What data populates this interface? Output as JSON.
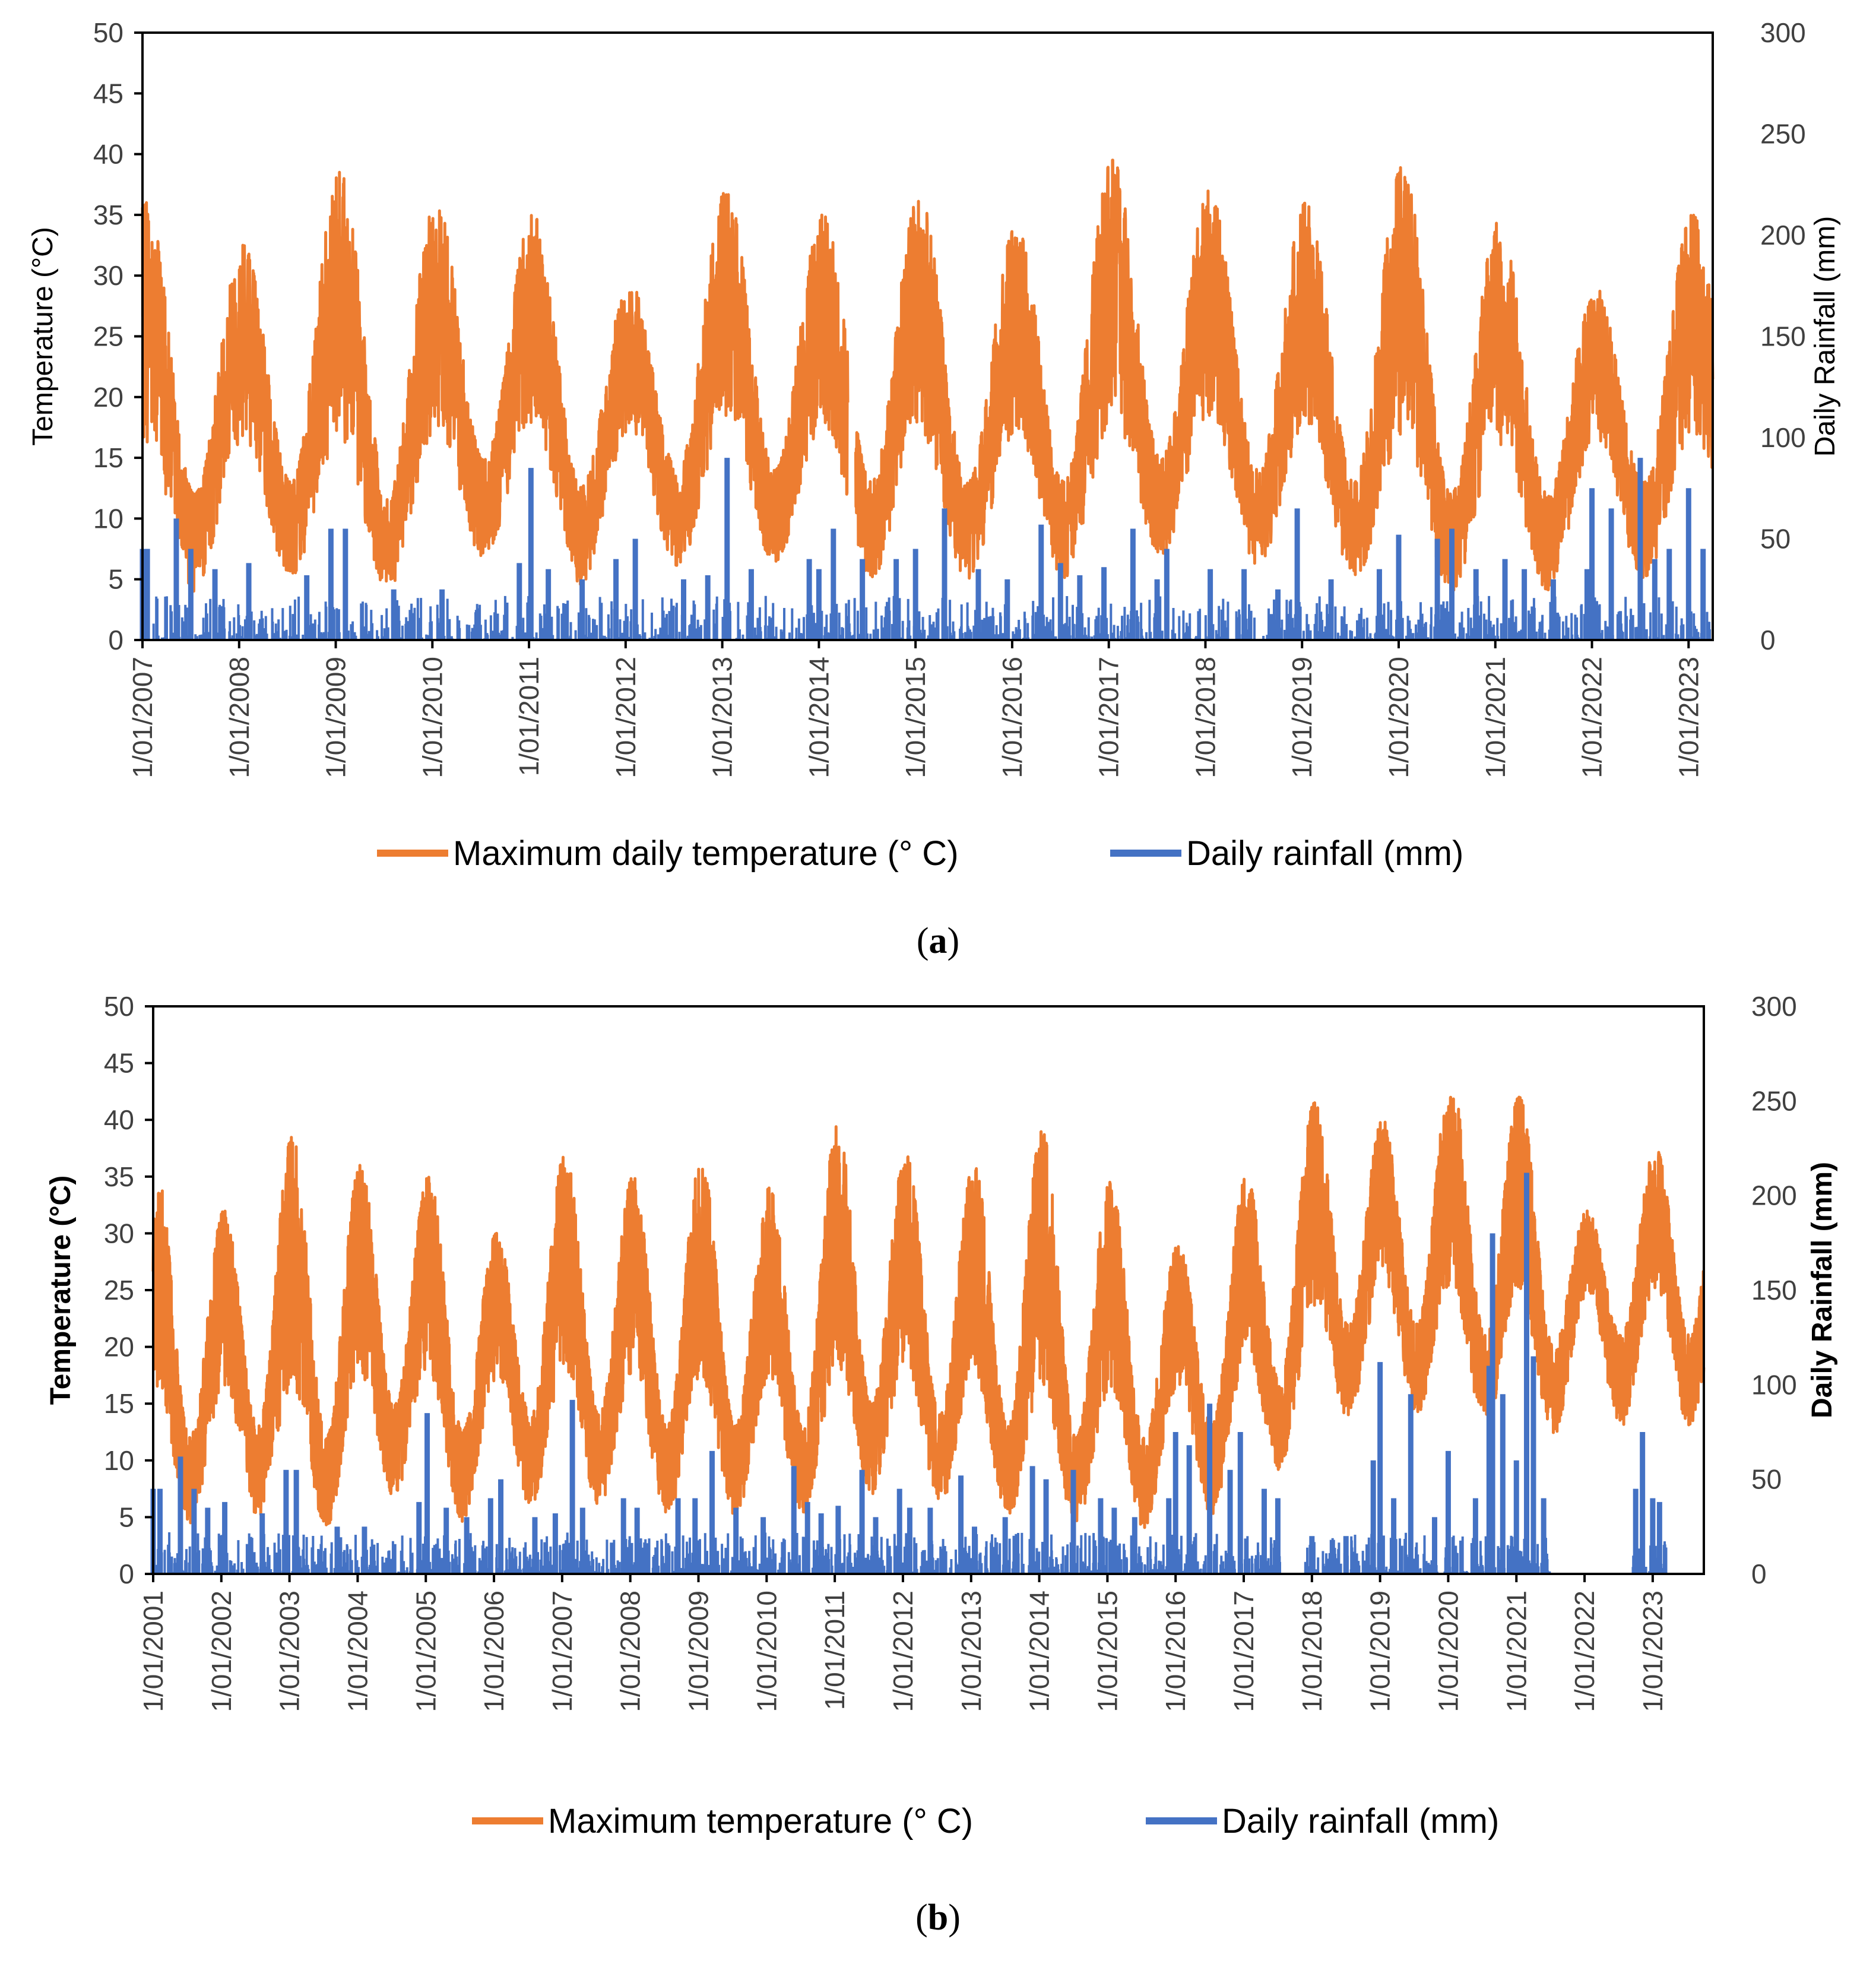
{
  "colors": {
    "temperature": "#ED7D31",
    "rainfall": "#4472C4",
    "axis": "#000000",
    "tick_text": "#404040"
  },
  "chart_data": [
    {
      "type": "line",
      "panel_label": "a",
      "caption": {
        "open": "(",
        "letter": "a",
        "close": ")"
      },
      "title": "",
      "ylabel_left": "Temperature (°C)",
      "ylabel_right": "Daily Rainfall (mm)",
      "ylim_left": [
        0,
        50
      ],
      "ylim_right": [
        0,
        300
      ],
      "yticks_left": [
        "0",
        "5",
        "10",
        "15",
        "20",
        "25",
        "30",
        "35",
        "40",
        "45",
        "50"
      ],
      "yticks_right": [
        "0",
        "50",
        "100",
        "150",
        "200",
        "250",
        "300"
      ],
      "x_start_year": 2007,
      "x_end_year": 2023.25,
      "x_tick_labels": [
        "1/01/2007",
        "1/01/2008",
        "1/01/2009",
        "1/01/2010",
        "1/01/2011",
        "1/01/2012",
        "1/01/2013",
        "1/01/2014",
        "1/01/2015",
        "1/01/2016",
        "1/01/2017",
        "1/01/2018",
        "1/01/2019",
        "1/01/2020",
        "1/01/2021",
        "1/01/2022",
        "1/01/2023"
      ],
      "grid": false,
      "legend": [
        "Maximum  daily temperature (° C)",
        "Daily rainfall (mm)"
      ],
      "series": [
        {
          "name": "Maximum  daily temperature (° C)",
          "axis": "left",
          "description": "daily maximum temperature, seasonal cycle; yearly extremes listed",
          "annual_peaks": [
            [
              2007.02,
              36
            ],
            [
              2008.05,
              32.5
            ],
            [
              2009.08,
              38.5
            ],
            [
              2010.0,
              36
            ],
            [
              2011.03,
              35
            ],
            [
              2012.05,
              29.5
            ],
            [
              2013.02,
              37
            ],
            [
              2014.05,
              35
            ],
            [
              2015.02,
              36.5
            ],
            [
              2016.05,
              34
            ],
            [
              2017.06,
              39.5
            ],
            [
              2018.04,
              37
            ],
            [
              2019.05,
              36
            ],
            [
              2020.03,
              39
            ],
            [
              2021.02,
              34.5
            ],
            [
              2022.05,
              29
            ],
            [
              2023.22,
              35
            ]
          ],
          "annual_troughs": [
            [
              2007.52,
              4
            ],
            [
              2008.55,
              5
            ],
            [
              2009.55,
              4
            ],
            [
              2010.6,
              7
            ],
            [
              2011.5,
              4.5
            ],
            [
              2012.5,
              6
            ],
            [
              2013.5,
              6
            ],
            [
              2014.55,
              5
            ],
            [
              2015.5,
              5
            ],
            [
              2016.55,
              5
            ],
            [
              2017.5,
              7
            ],
            [
              2018.55,
              6
            ],
            [
              2019.55,
              5
            ],
            [
              2020.55,
              4
            ],
            [
              2021.55,
              4
            ],
            [
              2022.5,
              5
            ]
          ],
          "gaps": [
            [
              2014.3,
              2014.38
            ]
          ]
        },
        {
          "name": "Daily rainfall (mm)",
          "axis": "right",
          "description": "daily rainfall spikes; notable events listed",
          "events": [
            [
              2007.0,
              45
            ],
            [
              2007.05,
              45
            ],
            [
              2007.35,
              60
            ],
            [
              2007.5,
              45
            ],
            [
              2007.75,
              35
            ],
            [
              2008.1,
              38
            ],
            [
              2008.7,
              32
            ],
            [
              2008.95,
              55
            ],
            [
              2009.1,
              55
            ],
            [
              2009.6,
              25
            ],
            [
              2010.1,
              25
            ],
            [
              2010.9,
              38
            ],
            [
              2011.02,
              85
            ],
            [
              2011.2,
              35
            ],
            [
              2011.55,
              30
            ],
            [
              2011.9,
              40
            ],
            [
              2012.1,
              50
            ],
            [
              2012.6,
              30
            ],
            [
              2012.85,
              32
            ],
            [
              2013.05,
              90
            ],
            [
              2013.3,
              35
            ],
            [
              2013.9,
              40
            ],
            [
              2014.0,
              35
            ],
            [
              2014.15,
              55
            ],
            [
              2014.45,
              40
            ],
            [
              2014.8,
              40
            ],
            [
              2015.0,
              45
            ],
            [
              2015.3,
              65
            ],
            [
              2015.65,
              35
            ],
            [
              2015.95,
              30
            ],
            [
              2016.3,
              57
            ],
            [
              2016.5,
              38
            ],
            [
              2016.7,
              32
            ],
            [
              2016.95,
              36
            ],
            [
              2017.25,
              55
            ],
            [
              2017.5,
              30
            ],
            [
              2017.6,
              45
            ],
            [
              2018.05,
              35
            ],
            [
              2018.4,
              35
            ],
            [
              2018.75,
              25
            ],
            [
              2018.95,
              65
            ],
            [
              2019.3,
              30
            ],
            [
              2019.8,
              35
            ],
            [
              2020.0,
              52
            ],
            [
              2020.4,
              50
            ],
            [
              2020.55,
              55
            ],
            [
              2020.8,
              35
            ],
            [
              2021.1,
              40
            ],
            [
              2021.3,
              35
            ],
            [
              2021.6,
              30
            ],
            [
              2021.95,
              35
            ],
            [
              2022.0,
              75
            ],
            [
              2022.2,
              65
            ],
            [
              2022.5,
              90
            ],
            [
              2022.65,
              40
            ],
            [
              2022.8,
              45
            ],
            [
              2023.0,
              75
            ],
            [
              2023.15,
              45
            ]
          ]
        }
      ]
    },
    {
      "type": "line",
      "panel_label": "b",
      "caption": {
        "open": "(",
        "letter": "b",
        "close": ")"
      },
      "title": "",
      "ylabel_left": "Temperature (°C)",
      "ylabel_right": "Daily Rainfall (mm)",
      "ylim_left": [
        0,
        50
      ],
      "ylim_right": [
        0,
        300
      ],
      "yticks_left": [
        "0",
        "5",
        "10",
        "15",
        "20",
        "25",
        "30",
        "35",
        "40",
        "45",
        "50"
      ],
      "yticks_right": [
        "0",
        "50",
        "100",
        "150",
        "200",
        "250",
        "300"
      ],
      "x_start_year": 2001,
      "x_end_year": 2023.75,
      "x_tick_labels": [
        "1/01/2001",
        "1/01/2002",
        "1/01/2003",
        "1/01/2004",
        "1/01/2005",
        "1/01/2006",
        "1/01/2007",
        "1/01/2008",
        "1/01/2009",
        "1/01/2010",
        "1/01/2011",
        "1/01/2012",
        "1/01/2013",
        "1/01/2014",
        "1/01/2015",
        "1/01/2016",
        "1/01/2017",
        "1/01/2018",
        "1/01/2019",
        "1/01/2020",
        "1/01/2021",
        "1/01/2022",
        "1/01/2023"
      ],
      "grid": false,
      "legend": [
        "Maximum temperature (° C)",
        "Daily rainfall (mm)"
      ],
      "series": [
        {
          "name": "Maximum temperature (° C)",
          "axis": "left",
          "description": "daily maximum temperature, seasonal cycle; yearly extremes listed",
          "annual_peaks": [
            [
              2001.02,
              36
            ],
            [
              2002.05,
              32
            ],
            [
              2003.05,
              38.5
            ],
            [
              2004.0,
              36
            ],
            [
              2005.02,
              35
            ],
            [
              2006.05,
              30
            ],
            [
              2007.05,
              37
            ],
            [
              2008.0,
              35
            ],
            [
              2009.02,
              36.5
            ],
            [
              2010.05,
              34
            ],
            [
              2011.05,
              39.5
            ],
            [
              2012.03,
              37
            ],
            [
              2013.05,
              36
            ],
            [
              2014.02,
              39
            ],
            [
              2015.02,
              34.5
            ],
            [
              2016.05,
              29
            ],
            [
              2017.05,
              35
            ],
            [
              2018.05,
              41.5
            ],
            [
              2019.05,
              40
            ],
            [
              2020.02,
              43.5
            ],
            [
              2021.05,
              42
            ],
            [
              2022.05,
              32
            ],
            [
              2023.05,
              37.5
            ]
          ],
          "annual_troughs": [
            [
              2001.55,
              4
            ],
            [
              2002.55,
              5
            ],
            [
              2003.55,
              4
            ],
            [
              2004.6,
              7
            ],
            [
              2005.5,
              4.5
            ],
            [
              2006.55,
              6
            ],
            [
              2007.55,
              6
            ],
            [
              2008.55,
              5
            ],
            [
              2009.5,
              5
            ],
            [
              2010.55,
              5
            ],
            [
              2011.5,
              7
            ],
            [
              2012.55,
              6
            ],
            [
              2013.55,
              5
            ],
            [
              2014.55,
              4
            ],
            [
              2015.55,
              4
            ],
            [
              2016.5,
              5
            ],
            [
              2017.55,
              9
            ],
            [
              2018.55,
              14
            ],
            [
              2019.55,
              14
            ],
            [
              2020.55,
              13
            ],
            [
              2021.55,
              12
            ],
            [
              2022.55,
              13
            ],
            [
              2023.55,
              13
            ]
          ],
          "gaps": []
        },
        {
          "name": "Daily rainfall (mm)",
          "axis": "right",
          "description": "daily rainfall spikes; notable events listed",
          "events": [
            [
              2001.0,
              45
            ],
            [
              2001.1,
              45
            ],
            [
              2001.4,
              62
            ],
            [
              2001.6,
              45
            ],
            [
              2001.8,
              35
            ],
            [
              2002.05,
              38
            ],
            [
              2002.6,
              32
            ],
            [
              2002.95,
              55
            ],
            [
              2003.1,
              55
            ],
            [
              2003.7,
              25
            ],
            [
              2004.1,
              25
            ],
            [
              2004.9,
              38
            ],
            [
              2005.02,
              85
            ],
            [
              2005.3,
              35
            ],
            [
              2005.6,
              30
            ],
            [
              2005.95,
              40
            ],
            [
              2006.1,
              50
            ],
            [
              2006.6,
              30
            ],
            [
              2006.9,
              32
            ],
            [
              2007.15,
              92
            ],
            [
              2007.3,
              35
            ],
            [
              2007.9,
              40
            ],
            [
              2008.1,
              35
            ],
            [
              2008.7,
              40
            ],
            [
              2008.95,
              40
            ],
            [
              2009.2,
              65
            ],
            [
              2009.55,
              35
            ],
            [
              2009.95,
              30
            ],
            [
              2010.4,
              57
            ],
            [
              2010.6,
              38
            ],
            [
              2010.8,
              32
            ],
            [
              2011.05,
              36
            ],
            [
              2011.4,
              55
            ],
            [
              2011.6,
              30
            ],
            [
              2011.95,
              45
            ],
            [
              2012.1,
              35
            ],
            [
              2012.4,
              35
            ],
            [
              2012.85,
              52
            ],
            [
              2013.05,
              25
            ],
            [
              2013.5,
              30
            ],
            [
              2013.9,
              57
            ],
            [
              2014.1,
              50
            ],
            [
              2014.5,
              55
            ],
            [
              2014.9,
              40
            ],
            [
              2015.1,
              35
            ],
            [
              2015.4,
              30
            ],
            [
              2015.9,
              40
            ],
            [
              2016.0,
              75
            ],
            [
              2016.2,
              68
            ],
            [
              2016.5,
              90
            ],
            [
              2016.8,
              55
            ],
            [
              2016.95,
              75
            ],
            [
              2017.3,
              45
            ],
            [
              2017.5,
              40
            ],
            [
              2018.0,
              20
            ],
            [
              2018.3,
              18
            ],
            [
              2018.5,
              20
            ],
            [
              2018.9,
              60
            ],
            [
              2019.0,
              112
            ],
            [
              2019.2,
              40
            ],
            [
              2019.45,
              95
            ],
            [
              2019.8,
              30
            ],
            [
              2020.0,
              65
            ],
            [
              2020.4,
              40
            ],
            [
              2020.6,
              110
            ],
            [
              2020.65,
              180
            ],
            [
              2020.8,
              95
            ],
            [
              2021.0,
              60
            ],
            [
              2021.15,
              212
            ],
            [
              2021.25,
              115
            ],
            [
              2021.4,
              40
            ],
            [
              2022.75,
              45
            ],
            [
              2022.85,
              75
            ],
            [
              2023.0,
              40
            ],
            [
              2023.1,
              38
            ]
          ]
        }
      ]
    }
  ]
}
